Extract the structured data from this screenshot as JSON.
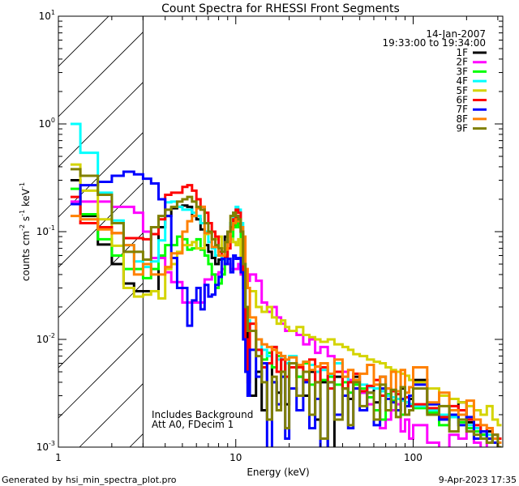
{
  "chart_data": {
    "type": "line",
    "style": "histogram-step",
    "title": "Count Spectra for RHESSI Front Segments",
    "xlabel": "Energy (keV)",
    "ylabel": {
      "parts": [
        "counts cm",
        "-2",
        " s",
        "-1",
        " keV",
        "-1"
      ]
    },
    "xscale": "log",
    "yscale": "log",
    "xlim": [
      1,
      320
    ],
    "ylim": [
      0.001,
      10
    ],
    "x_ticks": [
      {
        "value": 1,
        "label": "1"
      },
      {
        "value": 10,
        "label": "10"
      },
      {
        "value": 100,
        "label": "100"
      }
    ],
    "y_ticks": [
      {
        "value": 10,
        "base": "10",
        "exp": "1"
      },
      {
        "value": 1,
        "base": "10",
        "exp": "0"
      },
      {
        "value": 0.1,
        "base": "10",
        "exp": "-1"
      },
      {
        "value": 0.01,
        "base": "10",
        "exp": "-2"
      },
      {
        "value": 0.001,
        "base": "10",
        "exp": "-3"
      }
    ],
    "hatched_region_keV": [
      1,
      3
    ],
    "legend": {
      "placement": "top-right",
      "date": "14-Jan-2007",
      "time_range": "19:33:00 to 19:34:00"
    },
    "annotations": [
      "Includes Background",
      "Att A0, FDecim 1"
    ],
    "energy_edges_keV": [
      1.17,
      1.33,
      1.67,
      2,
      2.33,
      2.67,
      3,
      3.33,
      3.67,
      4,
      4.33,
      4.67,
      5,
      5.33,
      5.67,
      6,
      6.33,
      6.67,
      7,
      7.33,
      7.67,
      8,
      8.33,
      8.67,
      9,
      9.33,
      9.67,
      10,
      10.33,
      10.67,
      11,
      11.33,
      11.67,
      12,
      13,
      14,
      15,
      16,
      17,
      18,
      19,
      20,
      22,
      24,
      26,
      28,
      30,
      33,
      36,
      40,
      43,
      46,
      50,
      55,
      60,
      65,
      70,
      75,
      80,
      85,
      90,
      95,
      100,
      120,
      140,
      160,
      180,
      200,
      220,
      240,
      260,
      280,
      300,
      315
    ],
    "series": [
      {
        "name": "1F",
        "color": "#000000",
        "values": [
          0.3,
          0.14,
          0.076,
          0.05,
          0.033,
          0.028,
          0.028,
          0.028,
          0.11,
          0.14,
          0.165,
          0.17,
          0.175,
          0.17,
          0.14,
          0.13,
          0.105,
          0.075,
          0.065,
          0.057,
          0.05,
          0.055,
          0.06,
          0.09,
          0.1,
          0.12,
          0.115,
          0.14,
          0.12,
          0.1,
          0.05,
          0.012,
          0.003,
          0.003,
          0.005,
          0.0022,
          0.006,
          0.004,
          0.0032,
          0.007,
          0.0025,
          0.006,
          0.0045,
          0.003,
          0.005,
          0.0018,
          0.004,
          0.0009,
          0.0045,
          0.0035,
          0.0028,
          0.0045,
          0.0032,
          0.0036,
          0.0026,
          0.0045,
          0.0028,
          0.0033,
          0.0022,
          0.0035,
          0.0026,
          0.0028,
          0.0042,
          0.0025,
          0.0019,
          0.0022,
          0.0026,
          0.0017,
          0.0015,
          0.0013,
          0.0014,
          0.0011,
          0.0009
        ]
      },
      {
        "name": "2F",
        "color": "#ff00ff",
        "values": [
          0.19,
          0.19,
          0.19,
          0.17,
          0.17,
          0.15,
          0.1,
          0.057,
          0.057,
          0.042,
          0.034,
          0.034,
          0.022,
          0.022,
          0.022,
          0.022,
          0.022,
          0.036,
          0.036,
          0.04,
          0.04,
          0.042,
          0.045,
          0.05,
          0.05,
          0.045,
          0.045,
          0.045,
          0.05,
          0.04,
          0.045,
          0.04,
          0.035,
          0.04,
          0.035,
          0.022,
          0.018,
          0.02,
          0.016,
          0.014,
          0.012,
          0.012,
          0.011,
          0.009,
          0.01,
          0.0075,
          0.0085,
          0.007,
          0.006,
          0.005,
          0.0042,
          0.0035,
          0.0032,
          0.0025,
          0.0022,
          0.0015,
          0.0018,
          0.0022,
          0.0025,
          0.0014,
          0.0018,
          0.0012,
          0.0016,
          0.0011,
          0.0009,
          0.0013,
          0.0012,
          0.0015,
          0.0011,
          0.0009,
          0.0012,
          0.0011,
          0.001
        ]
      },
      {
        "name": "3F",
        "color": "#00ff00",
        "values": [
          0.25,
          0.145,
          0.085,
          0.06,
          0.045,
          0.045,
          0.037,
          0.045,
          0.06,
          0.075,
          0.075,
          0.09,
          0.085,
          0.068,
          0.07,
          0.085,
          0.068,
          0.06,
          0.05,
          0.04,
          0.03,
          0.033,
          0.04,
          0.06,
          0.08,
          0.09,
          0.11,
          0.12,
          0.11,
          0.06,
          0.03,
          0.02,
          0.015,
          0.012,
          0.008,
          0.0065,
          0.0075,
          0.0055,
          0.007,
          0.0045,
          0.006,
          0.0055,
          0.0045,
          0.006,
          0.0038,
          0.005,
          0.0042,
          0.0045,
          0.0038,
          0.004,
          0.0032,
          0.0038,
          0.0035,
          0.0029,
          0.0022,
          0.0018,
          0.0031,
          0.0027,
          0.0022,
          0.002,
          0.0024,
          0.0025,
          0.0023,
          0.0021,
          0.0016,
          0.0019,
          0.0017,
          0.0015,
          0.0014,
          0.0013,
          0.0012,
          0.0011,
          0.0011
        ]
      },
      {
        "name": "4F",
        "color": "#00ffff",
        "values": [
          1.0,
          0.54,
          0.23,
          0.127,
          0.075,
          0.053,
          0.047,
          0.053,
          0.083,
          0.187,
          0.19,
          0.17,
          0.16,
          0.16,
          0.15,
          0.14,
          0.12,
          0.1,
          0.08,
          0.07,
          0.06,
          0.06,
          0.055,
          0.07,
          0.09,
          0.12,
          0.15,
          0.17,
          0.16,
          0.12,
          0.05,
          0.02,
          0.015,
          0.014,
          0.01,
          0.008,
          0.007,
          0.0085,
          0.0065,
          0.007,
          0.006,
          0.007,
          0.0055,
          0.0062,
          0.0058,
          0.005,
          0.0052,
          0.0047,
          0.006,
          0.0045,
          0.004,
          0.0042,
          0.0038,
          0.0036,
          0.0035,
          0.0033,
          0.003,
          0.0029,
          0.0028,
          0.0027,
          0.0026,
          0.0025,
          0.0024,
          0.0022,
          0.002,
          0.0019,
          0.0018,
          0.0016,
          0.0015,
          0.0014,
          0.0013,
          0.0012,
          0.0012
        ]
      },
      {
        "name": "5F",
        "color": "#d4d400",
        "values": [
          0.42,
          0.24,
          0.13,
          0.074,
          0.03,
          0.025,
          0.026,
          0.028,
          0.024,
          0.045,
          0.05,
          0.065,
          0.075,
          0.075,
          0.08,
          0.07,
          0.07,
          0.095,
          0.1,
          0.1,
          0.085,
          0.09,
          0.07,
          0.07,
          0.09,
          0.085,
          0.08,
          0.075,
          0.085,
          0.06,
          0.045,
          0.035,
          0.03,
          0.028,
          0.02,
          0.018,
          0.02,
          0.016,
          0.014,
          0.015,
          0.013,
          0.012,
          0.013,
          0.011,
          0.0105,
          0.01,
          0.0095,
          0.01,
          0.009,
          0.0085,
          0.008,
          0.0073,
          0.007,
          0.0065,
          0.0062,
          0.006,
          0.0055,
          0.0052,
          0.005,
          0.0048,
          0.0046,
          0.0042,
          0.004,
          0.0035,
          0.003,
          0.0028,
          0.0026,
          0.0024,
          0.0022,
          0.002,
          0.0024,
          0.0018,
          0.0016
        ]
      },
      {
        "name": "6F",
        "color": "#ff0000",
        "values": [
          0.21,
          0.12,
          0.11,
          0.097,
          0.087,
          0.087,
          0.085,
          0.095,
          0.13,
          0.22,
          0.23,
          0.23,
          0.26,
          0.27,
          0.24,
          0.2,
          0.17,
          0.15,
          0.12,
          0.1,
          0.09,
          0.065,
          0.06,
          0.058,
          0.07,
          0.11,
          0.13,
          0.16,
          0.15,
          0.1,
          0.04,
          0.01,
          0.004,
          0.014,
          0.008,
          0.0055,
          0.006,
          0.0085,
          0.005,
          0.0065,
          0.0045,
          0.0055,
          0.0055,
          0.0042,
          0.0065,
          0.004,
          0.0055,
          0.0035,
          0.005,
          0.0035,
          0.004,
          0.0048,
          0.0033,
          0.0037,
          0.0042,
          0.003,
          0.0035,
          0.0033,
          0.0031,
          0.0028,
          0.0029,
          0.0024,
          0.0025,
          0.0023,
          0.0019,
          0.0024,
          0.0022,
          0.0018,
          0.0016,
          0.0014,
          0.0015,
          0.0013,
          0.0012
        ]
      },
      {
        "name": "7F",
        "color": "#0000ff",
        "values": [
          0.18,
          0.27,
          0.29,
          0.33,
          0.36,
          0.34,
          0.31,
          0.28,
          0.2,
          0.14,
          0.057,
          0.03,
          0.03,
          0.0134,
          0.023,
          0.03,
          0.019,
          0.032,
          0.025,
          0.026,
          0.032,
          0.038,
          0.056,
          0.05,
          0.056,
          0.042,
          0.06,
          0.056,
          0.057,
          0.042,
          0.01,
          0.005,
          0.003,
          0.008,
          0.0045,
          0.006,
          0.0009,
          0.004,
          0.0025,
          0.0045,
          0.0012,
          0.0035,
          0.0022,
          0.004,
          0.0015,
          0.0028,
          0.0009,
          0.004,
          0.002,
          0.003,
          0.0015,
          0.0035,
          0.0022,
          0.0032,
          0.0016,
          0.0035,
          0.0028,
          0.0026,
          0.0022,
          0.0028,
          0.0024,
          0.003,
          0.0038,
          0.0025,
          0.0018,
          0.002,
          0.0016,
          0.0019,
          0.0012,
          0.0014,
          0.0012,
          0.0011,
          0.001
        ]
      },
      {
        "name": "8F",
        "color": "#ff8000",
        "values": [
          0.14,
          0.13,
          0.105,
          0.097,
          0.075,
          0.04,
          0.05,
          0.04,
          0.04,
          0.047,
          0.063,
          0.063,
          0.1,
          0.125,
          0.14,
          0.165,
          0.17,
          0.097,
          0.097,
          0.072,
          0.072,
          0.06,
          0.06,
          0.068,
          0.08,
          0.105,
          0.12,
          0.13,
          0.125,
          0.11,
          0.09,
          0.045,
          0.03,
          0.016,
          0.01,
          0.009,
          0.0085,
          0.008,
          0.0075,
          0.007,
          0.0065,
          0.0068,
          0.0058,
          0.0062,
          0.0052,
          0.0056,
          0.006,
          0.0048,
          0.0065,
          0.0045,
          0.0052,
          0.0042,
          0.0048,
          0.0058,
          0.0038,
          0.0045,
          0.0035,
          0.005,
          0.0033,
          0.0052,
          0.0032,
          0.0036,
          0.0055,
          0.0026,
          0.0032,
          0.0022,
          0.002,
          0.0027,
          0.0018,
          0.0016,
          0.0015,
          0.0012,
          0.0011
        ]
      },
      {
        "name": "9F",
        "color": "#808000",
        "values": [
          0.38,
          0.33,
          0.22,
          0.12,
          0.065,
          0.065,
          0.055,
          0.11,
          0.14,
          0.16,
          0.17,
          0.19,
          0.2,
          0.21,
          0.19,
          0.17,
          0.16,
          0.12,
          0.1,
          0.085,
          0.075,
          0.07,
          0.065,
          0.08,
          0.1,
          0.14,
          0.15,
          0.14,
          0.13,
          0.1,
          0.05,
          0.02,
          0.012,
          0.012,
          0.007,
          0.004,
          0.0018,
          0.0045,
          0.0022,
          0.005,
          0.0015,
          0.006,
          0.003,
          0.005,
          0.002,
          0.004,
          0.0012,
          0.004,
          0.0018,
          0.0035,
          0.0016,
          0.004,
          0.0024,
          0.0032,
          0.0018,
          0.0038,
          0.0022,
          0.0034,
          0.0019,
          0.0036,
          0.002,
          0.0022,
          0.0035,
          0.002,
          0.0024,
          0.0014,
          0.0018,
          0.0014,
          0.0013,
          0.0012,
          0.0011,
          0.0013,
          0.001
        ]
      }
    ]
  },
  "footer": {
    "generated_by": "Generated by hsi_min_spectra_plot.pro",
    "timestamp": "9-Apr-2023 17:35"
  }
}
